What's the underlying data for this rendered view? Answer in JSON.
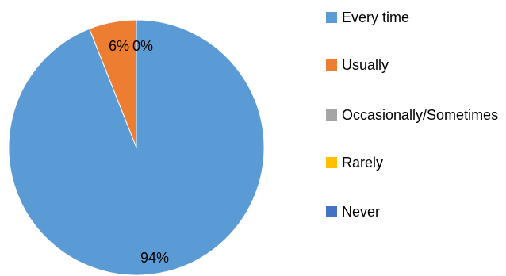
{
  "chart_data": {
    "type": "pie",
    "title": "",
    "categories": [
      "Every time",
      "Usually",
      "Occasionally/Sometimes",
      "Rarely",
      "Never"
    ],
    "values": [
      94,
      6,
      0,
      0,
      0
    ],
    "data_labels": [
      "94%",
      "6%",
      "0%",
      "0%",
      "0%"
    ],
    "colors": [
      "#5b9bd5",
      "#ed7d31",
      "#a5a5a5",
      "#ffc000",
      "#4472c4"
    ],
    "legend_position": "right",
    "legend": [
      {
        "label": "Every time",
        "color": "#5b9bd5"
      },
      {
        "label": "Usually",
        "color": "#ed7d31"
      },
      {
        "label": "Occasionally/Sometimes",
        "color": "#a5a5a5"
      },
      {
        "label": "Rarely",
        "color": "#ffc000"
      },
      {
        "label": "Never",
        "color": "#4472c4"
      }
    ]
  }
}
